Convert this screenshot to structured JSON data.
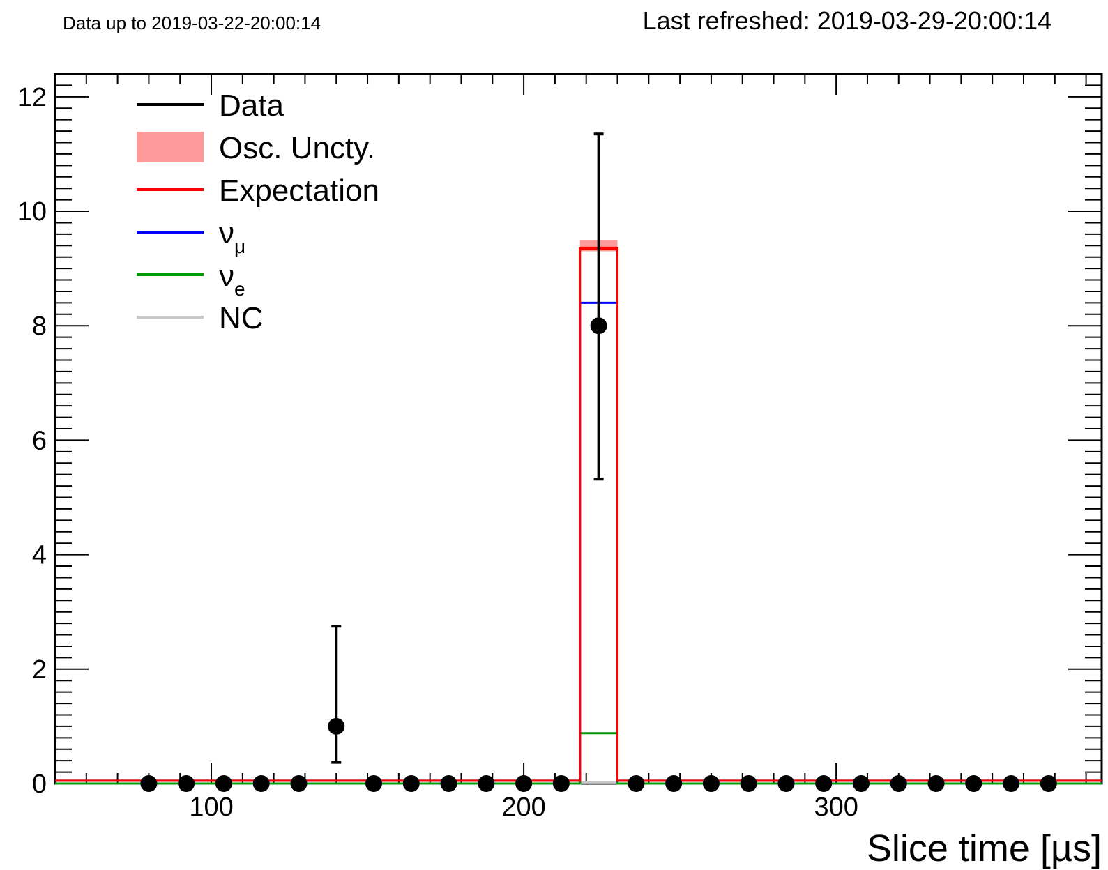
{
  "header": {
    "data_up_to": "Data up to 2019-03-22-20:00:14",
    "last_refreshed": "Last refreshed: 2019-03-29-20:00:14"
  },
  "chart_data": {
    "type": "histogram",
    "xlabel": "Slice time [µs]",
    "ylabel": "",
    "xlim": [
      50,
      385
    ],
    "ylim": [
      0,
      12.4
    ],
    "x_ticks": [
      100,
      200,
      300
    ],
    "y_ticks": [
      0,
      2,
      4,
      6,
      8,
      10,
      12
    ],
    "bin_edges": [
      50,
      74,
      86,
      98,
      110,
      122,
      134,
      146,
      158,
      170,
      182,
      194,
      206,
      218,
      230,
      242,
      254,
      266,
      278,
      290,
      302,
      314,
      326,
      338,
      350,
      362,
      374,
      385
    ],
    "series": [
      {
        "name": "Data",
        "style": "points",
        "color": "#000000",
        "x": [
          80,
          92,
          104,
          116,
          128,
          140,
          152,
          164,
          176,
          188,
          200,
          212,
          224,
          236,
          248,
          260,
          272,
          284,
          296,
          308,
          320,
          332,
          344,
          356,
          368
        ],
        "y": [
          0,
          0,
          0,
          0,
          0,
          1,
          0,
          0,
          0,
          0,
          0,
          0,
          8,
          0,
          0,
          0,
          0,
          0,
          0,
          0,
          0,
          0,
          0,
          0,
          0
        ],
        "err_low": [
          0,
          0,
          0,
          0,
          0,
          0.63,
          0,
          0,
          0,
          0,
          0,
          0,
          2.68,
          0,
          0,
          0,
          0,
          0,
          0,
          0,
          0,
          0,
          0,
          0,
          0
        ],
        "err_high": [
          0,
          0,
          0,
          0,
          0,
          1.75,
          0,
          0,
          0,
          0,
          0,
          0,
          3.35,
          0,
          0,
          0,
          0,
          0,
          0,
          0,
          0,
          0,
          0,
          0,
          0
        ]
      },
      {
        "name": "Osc. Uncty.",
        "style": "band",
        "color": "#ff9a9a",
        "peak_bin": [
          218,
          230
        ],
        "low": 9.3,
        "high": 9.5
      },
      {
        "name": "Expectation",
        "style": "step",
        "color": "#ff0000",
        "peak_bin": [
          218,
          230
        ],
        "peak_value": 9.35,
        "baseline": 0.05
      },
      {
        "name": "νμ",
        "style": "step",
        "color": "#0000ff",
        "peak_bin": [
          218,
          230
        ],
        "peak_value": 8.4,
        "baseline": 0.05
      },
      {
        "name": "νe",
        "style": "step",
        "color": "#009900",
        "peak_bin": [
          218,
          230
        ],
        "peak_value": 0.88,
        "baseline": 0
      },
      {
        "name": "NC",
        "style": "step",
        "color": "#c8c8c8",
        "peak_bin": [
          218,
          230
        ],
        "peak_value": 0.02,
        "baseline": 0
      }
    ],
    "legend": {
      "placement": "top-left",
      "entries": [
        {
          "name": "Data",
          "sub": "",
          "color": "#000000",
          "kind": "line"
        },
        {
          "name": "Osc. Uncty.",
          "sub": "",
          "color": "#ff9a9a",
          "kind": "box"
        },
        {
          "name": "Expectation",
          "sub": "",
          "color": "#ff0000",
          "kind": "line"
        },
        {
          "name": "ν",
          "sub": "μ",
          "color": "#0000ff",
          "kind": "line"
        },
        {
          "name": "ν",
          "sub": "e",
          "color": "#009900",
          "kind": "line"
        },
        {
          "name": "NC",
          "sub": "",
          "color": "#c8c8c8",
          "kind": "line"
        }
      ]
    }
  }
}
